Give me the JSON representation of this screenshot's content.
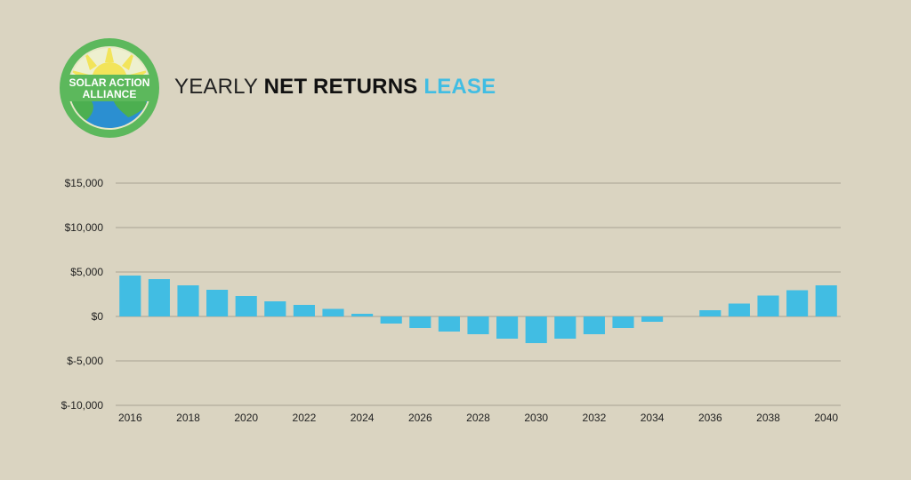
{
  "logo": {
    "line1": "SOLAR ACTION",
    "line2": "ALLIANCE",
    "colors": {
      "ring": "#5cb85c",
      "sun": "#f2e45a",
      "earth_water": "#2b8fd1",
      "earth_land": "#4caf50"
    }
  },
  "title": {
    "part1": "YEARLY ",
    "part2": "NET RETURNS ",
    "part3": "LEASE"
  },
  "colors": {
    "bar": "#41bde3",
    "grid": "#a8a292",
    "background": "#dad4c1",
    "accent": "#41bde3"
  },
  "chart_data": {
    "type": "bar",
    "title": "YEARLY NET RETURNS LEASE",
    "xlabel": "",
    "ylabel": "",
    "ylim": [
      -10000,
      15000
    ],
    "yticks": [
      15000,
      10000,
      5000,
      0,
      -5000,
      -10000
    ],
    "ytick_labels": [
      "$15,000",
      "$10,000",
      "$5,000",
      "$0",
      "$-5,000",
      "$-10,000"
    ],
    "grid": true,
    "categories": [
      "2016",
      "2017",
      "2018",
      "2019",
      "2020",
      "2021",
      "2022",
      "2023",
      "2024",
      "2025",
      "2026",
      "2027",
      "2028",
      "2029",
      "2030",
      "2031",
      "2032",
      "2033",
      "2034",
      "2035",
      "2036",
      "2037",
      "2038",
      "2039",
      "2040"
    ],
    "xtick_labels": [
      "2016",
      "",
      "2018",
      "",
      "2020",
      "",
      "2022",
      "",
      "2024",
      "",
      "2026",
      "",
      "2028",
      "",
      "2030",
      "",
      "2032",
      "",
      "2034",
      "",
      "2036",
      "",
      "2038",
      "",
      "2040"
    ],
    "values": [
      4600,
      4200,
      3500,
      3000,
      2300,
      1700,
      1300,
      850,
      300,
      -800,
      -1300,
      -1700,
      -2000,
      -2500,
      -3000,
      -2500,
      -2000,
      -1300,
      -600,
      0,
      700,
      1450,
      2350,
      2950,
      3500
    ]
  }
}
